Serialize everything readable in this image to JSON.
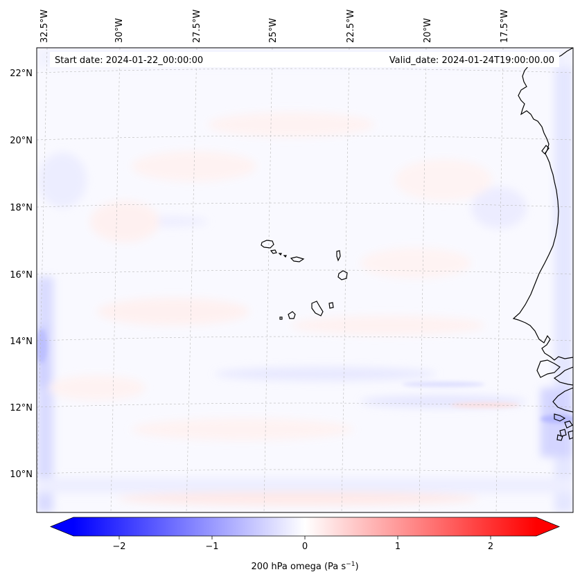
{
  "header": {
    "start_date": "Start date: 2024-01-22_00:00:00",
    "valid_date": "Valid_date: 2024-01-24T19:00:00.00"
  },
  "map": {
    "lon_labels": [
      "32.5°W",
      "30°W",
      "27.5°W",
      "25°W",
      "22.5°W",
      "20°W",
      "17.5°W"
    ],
    "lat_labels": [
      "22°N",
      "20°N",
      "18°N",
      "16°N",
      "14°N",
      "12°N",
      "10°N"
    ]
  },
  "colorbar": {
    "ticks": [
      "−2",
      "−1",
      "0",
      "1",
      "2"
    ],
    "label": "200 hPa omega (Pa s",
    "label_sup": "−1",
    "label_end": ")",
    "vmin": -2.6,
    "vmax": 2.6,
    "colors": {
      "neg": "#0000ff",
      "mid": "#ffffff",
      "pos": "#ff0000"
    }
  }
}
